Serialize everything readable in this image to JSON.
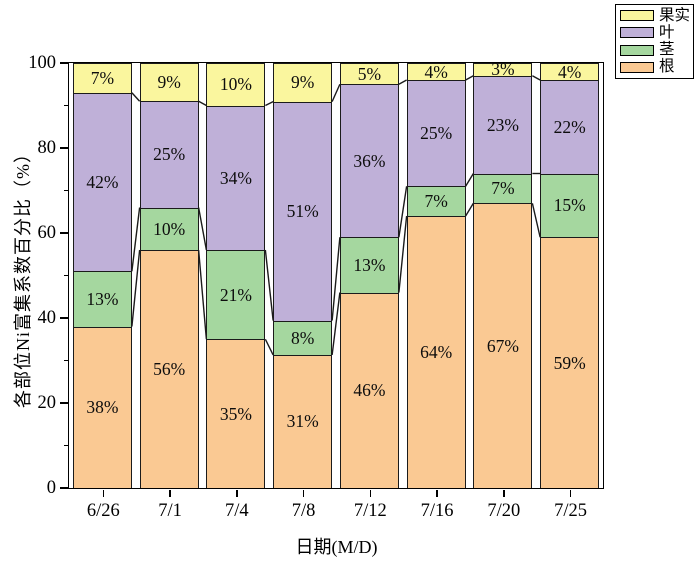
{
  "figure": {
    "background": "#ffffff",
    "frame_color": "#000000"
  },
  "chart_data": {
    "type": "bar",
    "subtype": "stacked-percentage-column",
    "title": "",
    "xlabel": "日期(M/D)",
    "ylabel": "各部位Ni富集系数百分比（%）",
    "ylim": [
      0,
      100
    ],
    "y_major_ticks": [
      0,
      20,
      40,
      60,
      80,
      100
    ],
    "y_minor_ticks": [
      10,
      30,
      50,
      70,
      90
    ],
    "grid": false,
    "categories": [
      "6/26",
      "7/1",
      "7/4",
      "7/8",
      "7/12",
      "7/16",
      "7/20",
      "7/25"
    ],
    "series": [
      {
        "name": "根",
        "color": "#FAC993",
        "values": [
          38,
          56,
          35,
          31,
          46,
          64,
          67,
          59
        ]
      },
      {
        "name": "茎",
        "color": "#A5D79F",
        "values": [
          13,
          10,
          21,
          8,
          13,
          7,
          7,
          15
        ]
      },
      {
        "name": "叶",
        "color": "#BFB0D8",
        "values": [
          42,
          25,
          34,
          51,
          36,
          25,
          23,
          22
        ]
      },
      {
        "name": "果实",
        "color": "#FAF69E",
        "values": [
          7,
          9,
          10,
          9,
          5,
          4,
          3,
          4
        ]
      }
    ],
    "data_label_suffix": "%",
    "segment_border_color": "#1b1b1b",
    "connector_lines": true,
    "legend": {
      "position": "top-right",
      "entries": [
        {
          "label": "果实",
          "color": "#FAF69E"
        },
        {
          "label": "叶",
          "color": "#BFB0D8"
        },
        {
          "label": "茎",
          "color": "#A5D79F"
        },
        {
          "label": "根",
          "color": "#FAC993"
        }
      ]
    }
  }
}
